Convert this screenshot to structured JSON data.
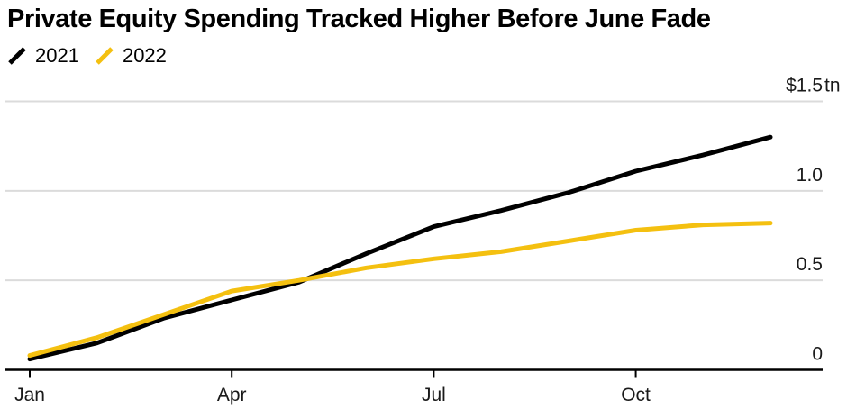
{
  "title": "Private Equity Spending Tracked Higher Before June Fade",
  "legend": [
    {
      "label": "2021",
      "color": "#000000"
    },
    {
      "label": "2022",
      "color": "#F4C010"
    }
  ],
  "colors": {
    "series_2021": "#000000",
    "series_2022": "#F4C010",
    "gridline": "#DBDBDB",
    "axis": "#000000",
    "tick_label": "#1a1a1a",
    "background": "#ffffff"
  },
  "chart_data": {
    "type": "line",
    "title": "Private Equity Spending Tracked Higher Before June Fade",
    "x": [
      "Jan",
      "Feb",
      "Mar",
      "Apr",
      "May",
      "Jun",
      "Jul",
      "Aug",
      "Sep",
      "Oct",
      "Nov",
      "Dec"
    ],
    "series": [
      {
        "name": "2021",
        "color": "#000000",
        "values": [
          0.06,
          0.15,
          0.29,
          0.39,
          0.49,
          0.65,
          0.8,
          0.89,
          0.99,
          1.11,
          1.2,
          1.3
        ]
      },
      {
        "name": "2022",
        "color": "#F4C010",
        "values": [
          0.08,
          0.18,
          0.31,
          0.44,
          0.5,
          0.57,
          0.62,
          0.66,
          0.72,
          0.78,
          0.81,
          0.82
        ]
      }
    ],
    "xlabel": "",
    "ylabel": "$ tn",
    "ylim": [
      0,
      1.5
    ],
    "y_ticks": [
      {
        "value": 1.5,
        "label": "$1.5",
        "suffix": "tn"
      },
      {
        "value": 1.0,
        "label": "1.0",
        "suffix": ""
      },
      {
        "value": 0.5,
        "label": "0.5",
        "suffix": ""
      },
      {
        "value": 0.0,
        "label": "0",
        "suffix": ""
      }
    ],
    "x_tick_labels": [
      "Jan",
      "Apr",
      "Jul",
      "Oct"
    ],
    "grid": "horizontal-only",
    "legend_position": "top-left"
  }
}
